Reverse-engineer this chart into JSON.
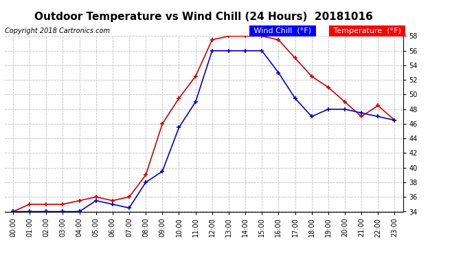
{
  "title": "Outdoor Temperature vs Wind Chill (24 Hours)  20181016",
  "copyright_text": "Copyright 2018 Cartronics.com",
  "xlabel": "",
  "ylim": [
    34.0,
    58.0
  ],
  "yticks": [
    34.0,
    36.0,
    38.0,
    40.0,
    42.0,
    44.0,
    46.0,
    48.0,
    50.0,
    52.0,
    54.0,
    56.0,
    58.0
  ],
  "hours": [
    "00:00",
    "01:00",
    "02:00",
    "03:00",
    "04:00",
    "05:00",
    "06:00",
    "07:00",
    "08:00",
    "09:00",
    "10:00",
    "11:00",
    "12:00",
    "13:00",
    "14:00",
    "15:00",
    "16:00",
    "17:00",
    "18:00",
    "19:00",
    "20:00",
    "21:00",
    "22:00",
    "23:00"
  ],
  "temperature": [
    34.0,
    35.0,
    35.0,
    35.0,
    35.5,
    36.0,
    35.5,
    36.0,
    39.0,
    46.0,
    49.5,
    52.5,
    57.5,
    58.0,
    58.0,
    58.0,
    57.5,
    55.0,
    52.5,
    51.0,
    49.0,
    47.0,
    48.5,
    46.5
  ],
  "wind_chill": [
    34.0,
    34.0,
    34.0,
    34.0,
    34.0,
    35.5,
    35.0,
    34.5,
    38.0,
    39.5,
    45.5,
    49.0,
    56.0,
    56.0,
    56.0,
    56.0,
    53.0,
    49.5,
    47.0,
    48.0,
    48.0,
    47.5,
    47.0,
    46.5
  ],
  "temp_color": "#cc0000",
  "wind_chill_color": "#0000cc",
  "bg_color": "#ffffff",
  "plot_bg_color": "#ffffff",
  "grid_color": "#bbbbbb",
  "legend_wind_chill_bg": "#0000ff",
  "legend_temp_bg": "#ff0000",
  "legend_text_color": "#ffffff",
  "title_fontsize": 11,
  "copyright_fontsize": 7,
  "tick_label_fontsize": 7,
  "legend_fontsize": 8
}
